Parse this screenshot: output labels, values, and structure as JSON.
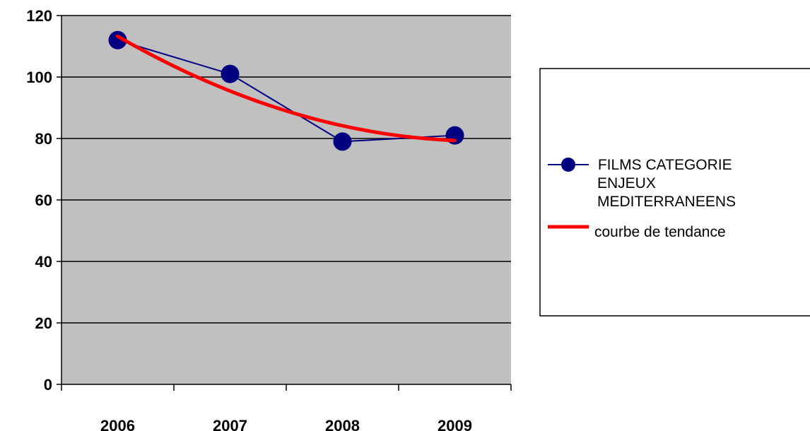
{
  "chart_data": {
    "type": "line",
    "title": "",
    "xlabel": "",
    "ylabel": "",
    "categories": [
      "2006",
      "2007",
      "2008",
      "2009"
    ],
    "ylim": [
      0,
      120
    ],
    "yticks": [
      0,
      20,
      40,
      60,
      80,
      100,
      120
    ],
    "grid": true,
    "legend_position": "right",
    "plot_background": "#C0C0C0",
    "series": [
      {
        "name": " FILMS CATEGORIE ENJEUX MEDITERRANEENS",
        "legend_lines": [
          " FILMS CATEGORIE",
          "ENJEUX",
          "MEDITERRANEENS"
        ],
        "values": [
          112,
          101,
          79,
          81
        ],
        "color": "#000080",
        "marker": "circle"
      },
      {
        "name": "courbe de tendance",
        "kind": "trendline",
        "fit": "polynomial-2",
        "values": [
          113.3,
          95.3,
          84.3,
          79.3
        ],
        "color": "#FF0000"
      }
    ]
  }
}
